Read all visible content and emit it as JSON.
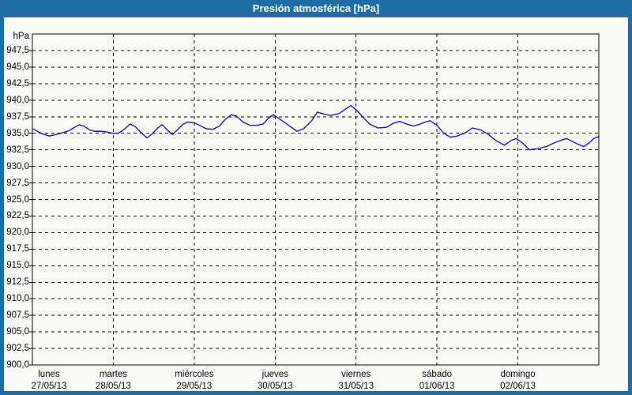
{
  "window": {
    "title": "Presión atmosférica [hPa]"
  },
  "colors": {
    "titlebar": "#1d6da3",
    "border": "#1d6da3",
    "background": "#fcfcf6",
    "grid": "#000000",
    "line": "#0000b0"
  },
  "chart_data": {
    "type": "line",
    "title": "Presión atmosférica [hPa]",
    "unit_label": "hPa",
    "ylabel": "hPa",
    "ylim": [
      900,
      950
    ],
    "ytick_step": 2.5,
    "first_labeled_ytick": 947.5,
    "decimal_separator": ",",
    "grid": true,
    "legend": "none",
    "x_unit": "hours_since_start",
    "xlim": [
      0,
      168
    ],
    "days": [
      {
        "name": "lunes",
        "date": "27/05/13"
      },
      {
        "name": "martes",
        "date": "28/05/13"
      },
      {
        "name": "miércoles",
        "date": "29/05/13"
      },
      {
        "name": "jueves",
        "date": "30/05/13"
      },
      {
        "name": "viernes",
        "date": "31/05/13"
      },
      {
        "name": "sábado",
        "date": "01/06/13"
      },
      {
        "name": "domingo",
        "date": "02/06/13"
      }
    ],
    "series": [
      {
        "name": "Presión atmosférica",
        "color": "#0000b0",
        "points": [
          [
            0,
            935.7
          ],
          [
            1.5,
            935.3
          ],
          [
            3,
            934.9
          ],
          [
            5,
            934.6
          ],
          [
            7,
            934.8
          ],
          [
            9,
            935.1
          ],
          [
            11,
            935.4
          ],
          [
            12.5,
            935.9
          ],
          [
            14,
            936.3
          ],
          [
            15.5,
            936.0
          ],
          [
            17,
            935.5
          ],
          [
            18.5,
            935.3
          ],
          [
            20.5,
            935.3
          ],
          [
            22,
            935.2
          ],
          [
            24,
            935.0
          ],
          [
            25.5,
            935.0
          ],
          [
            27,
            935.5
          ],
          [
            29,
            936.4
          ],
          [
            30.5,
            936.0
          ],
          [
            32,
            935.2
          ],
          [
            34,
            934.3
          ],
          [
            35.5,
            934.9
          ],
          [
            37,
            935.7
          ],
          [
            38.5,
            936.3
          ],
          [
            40,
            935.5
          ],
          [
            41.5,
            934.8
          ],
          [
            43,
            935.5
          ],
          [
            44.5,
            936.3
          ],
          [
            46,
            936.7
          ],
          [
            48,
            936.6
          ],
          [
            49.5,
            936.2
          ],
          [
            51.5,
            935.7
          ],
          [
            53.5,
            935.6
          ],
          [
            55.5,
            936.1
          ],
          [
            57,
            937.0
          ],
          [
            59,
            937.8
          ],
          [
            60.5,
            937.6
          ],
          [
            62.5,
            936.7
          ],
          [
            64.5,
            936.2
          ],
          [
            66.5,
            936.2
          ],
          [
            68.5,
            936.4
          ],
          [
            70,
            937.3
          ],
          [
            71.5,
            937.8
          ],
          [
            73.5,
            937.1
          ],
          [
            76,
            936.2
          ],
          [
            78.5,
            935.3
          ],
          [
            80.5,
            935.7
          ],
          [
            83,
            937.0
          ],
          [
            84.5,
            938.2
          ],
          [
            86.5,
            937.9
          ],
          [
            88.5,
            937.7
          ],
          [
            91,
            938.0
          ],
          [
            93,
            938.7
          ],
          [
            94.5,
            939.2
          ],
          [
            96.5,
            938.3
          ],
          [
            98.5,
            937.2
          ],
          [
            100,
            936.4
          ],
          [
            102.5,
            935.8
          ],
          [
            105,
            935.9
          ],
          [
            107,
            936.5
          ],
          [
            109,
            936.8
          ],
          [
            111,
            936.4
          ],
          [
            113,
            936.1
          ],
          [
            114.5,
            936.3
          ],
          [
            116.5,
            936.7
          ],
          [
            118,
            936.9
          ],
          [
            120,
            936.2
          ],
          [
            122,
            935.0
          ],
          [
            124,
            934.4
          ],
          [
            126,
            934.6
          ],
          [
            128.5,
            935.1
          ],
          [
            130.5,
            935.8
          ],
          [
            133,
            935.5
          ],
          [
            135,
            934.9
          ],
          [
            137.5,
            933.9
          ],
          [
            140,
            933.2
          ],
          [
            142,
            933.9
          ],
          [
            143.5,
            934.2
          ],
          [
            145,
            933.7
          ],
          [
            147.5,
            932.5
          ],
          [
            150,
            932.7
          ],
          [
            152.5,
            933.0
          ],
          [
            154.5,
            933.5
          ],
          [
            157,
            934.0
          ],
          [
            158.5,
            934.2
          ],
          [
            160,
            933.8
          ],
          [
            162,
            933.3
          ],
          [
            163.5,
            933.0
          ],
          [
            165,
            933.5
          ],
          [
            166.5,
            934.2
          ],
          [
            168,
            934.5
          ]
        ]
      }
    ]
  }
}
